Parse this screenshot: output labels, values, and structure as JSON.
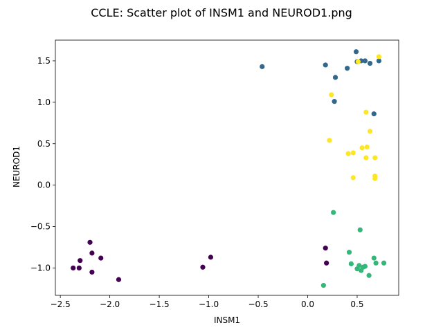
{
  "chart_data": {
    "type": "scatter",
    "title": "CCLE: Scatter plot of INSM1 and NEUROD1.png",
    "xlabel": "INSM1",
    "ylabel": "NEUROD1",
    "xlim": [
      -2.55,
      0.92
    ],
    "ylim": [
      -1.33,
      1.75
    ],
    "xticks": [
      -2.5,
      -2.0,
      -1.5,
      -1.0,
      -0.5,
      0.0,
      0.5
    ],
    "xtick_labels": [
      "−2.5",
      "−2.0",
      "−1.5",
      "−1.0",
      "−0.5",
      "0.0",
      "0.5"
    ],
    "yticks": [
      -1.0,
      -0.5,
      0.0,
      0.5,
      1.0,
      1.5
    ],
    "ytick_labels": [
      "−1.0",
      "−0.5",
      "0.0",
      "0.5",
      "1.0",
      "1.5"
    ],
    "grid": false,
    "legend": "none",
    "series": [
      {
        "color": "#440154",
        "points": [
          [
            -2.37,
            -1.0
          ],
          [
            -2.3,
            -0.91
          ],
          [
            -2.31,
            -1.0
          ],
          [
            -2.2,
            -0.69
          ],
          [
            -2.18,
            -0.82
          ],
          [
            -2.18,
            -1.05
          ],
          [
            -2.09,
            -0.88
          ],
          [
            -1.91,
            -1.14
          ],
          [
            -1.06,
            -0.99
          ],
          [
            -0.98,
            -0.87
          ],
          [
            0.18,
            -0.76
          ],
          [
            0.19,
            -0.94
          ]
        ]
      },
      {
        "color": "#31688e",
        "points": [
          [
            -0.46,
            1.43
          ],
          [
            0.18,
            1.45
          ],
          [
            0.28,
            1.3
          ],
          [
            0.4,
            1.41
          ],
          [
            0.49,
            1.61
          ],
          [
            0.5,
            1.49
          ],
          [
            0.54,
            1.5
          ],
          [
            0.58,
            1.5
          ],
          [
            0.63,
            1.47
          ],
          [
            0.72,
            1.5
          ],
          [
            0.27,
            1.01
          ],
          [
            0.67,
            0.86
          ]
        ]
      },
      {
        "color": "#35b779",
        "points": [
          [
            0.26,
            -0.33
          ],
          [
            0.53,
            -0.54
          ],
          [
            0.42,
            -0.81
          ],
          [
            0.44,
            -0.95
          ],
          [
            0.5,
            -1.01
          ],
          [
            0.52,
            -0.97
          ],
          [
            0.54,
            -1.03
          ],
          [
            0.56,
            -0.99
          ],
          [
            0.58,
            -0.98
          ],
          [
            0.62,
            -1.09
          ],
          [
            0.67,
            -0.88
          ],
          [
            0.69,
            -0.94
          ],
          [
            0.77,
            -0.94
          ],
          [
            0.16,
            -1.21
          ]
        ]
      },
      {
        "color": "#fde725",
        "points": [
          [
            0.72,
            1.55
          ],
          [
            0.51,
            1.49
          ],
          [
            0.24,
            1.09
          ],
          [
            0.59,
            0.88
          ],
          [
            0.63,
            0.65
          ],
          [
            0.22,
            0.54
          ],
          [
            0.55,
            0.45
          ],
          [
            0.6,
            0.46
          ],
          [
            0.41,
            0.38
          ],
          [
            0.46,
            0.39
          ],
          [
            0.59,
            0.33
          ],
          [
            0.68,
            0.33
          ],
          [
            0.68,
            0.11
          ],
          [
            0.68,
            0.08
          ],
          [
            0.46,
            0.09
          ]
        ]
      }
    ]
  }
}
